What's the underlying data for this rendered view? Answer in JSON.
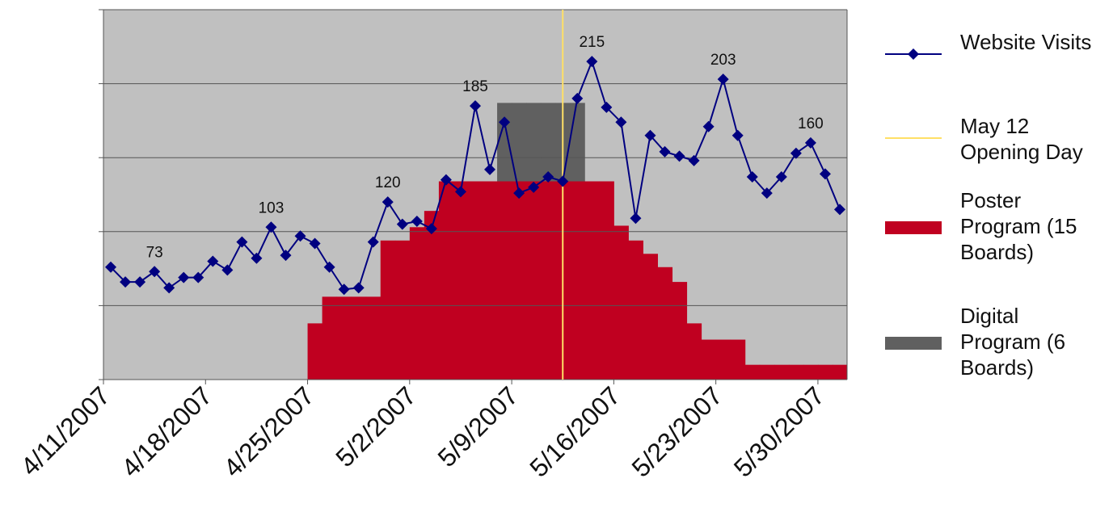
{
  "chart_data": {
    "type": "line",
    "categories": [
      "4/11/2007",
      null,
      null,
      null,
      null,
      null,
      null,
      "4/18/2007",
      null,
      null,
      null,
      null,
      null,
      null,
      "4/25/2007",
      null,
      null,
      null,
      null,
      null,
      null,
      "5/2/2007",
      null,
      null,
      null,
      null,
      null,
      null,
      "5/9/2007",
      null,
      null,
      null,
      null,
      null,
      null,
      "5/16/2007",
      null,
      null,
      null,
      null,
      null,
      null,
      "5/23/2007",
      null,
      null,
      null,
      null,
      null,
      null,
      "5/30/2007",
      null
    ],
    "ylim": [
      0,
      250
    ],
    "yticks": [
      0,
      50,
      100,
      150,
      200,
      250
    ],
    "grid": true,
    "series": [
      {
        "name": "Website Visits",
        "type": "line",
        "color": "#000080",
        "values": [
          76,
          66,
          66,
          73,
          62,
          69,
          69,
          80,
          74,
          93,
          82,
          103,
          84,
          97,
          92,
          76,
          61,
          62,
          93,
          120,
          105,
          107,
          102,
          135,
          127,
          185,
          142,
          174,
          126,
          130,
          137,
          134,
          190,
          215,
          184,
          174,
          109,
          165,
          154,
          151,
          148,
          171,
          203,
          165,
          137,
          126,
          137,
          153,
          160,
          139,
          115
        ],
        "value_labels": [
          null,
          null,
          null,
          73,
          null,
          null,
          null,
          null,
          null,
          null,
          null,
          103,
          null,
          null,
          null,
          null,
          null,
          null,
          null,
          120,
          null,
          null,
          null,
          null,
          null,
          185,
          null,
          null,
          null,
          null,
          null,
          null,
          null,
          215,
          null,
          null,
          null,
          null,
          null,
          null,
          null,
          null,
          203,
          null,
          null,
          null,
          null,
          null,
          160,
          null,
          null
        ]
      },
      {
        "name": "Poster Program (15 Boards)",
        "type": "step",
        "color": "#c00020",
        "values": [
          0,
          0,
          0,
          0,
          0,
          0,
          0,
          0,
          0,
          0,
          0,
          0,
          0,
          0,
          38,
          56,
          56,
          56,
          56,
          94,
          94,
          103,
          114,
          134,
          134,
          134,
          134,
          134,
          134,
          134,
          134,
          134,
          134,
          134,
          134,
          104,
          94,
          85,
          76,
          66,
          38,
          27,
          27,
          27,
          10,
          10,
          10,
          10,
          10,
          10,
          10
        ]
      },
      {
        "name": "Digital Program (6 Boards)",
        "type": "step",
        "color": "#606060",
        "values": [
          0,
          0,
          0,
          0,
          0,
          0,
          0,
          0,
          0,
          0,
          0,
          0,
          0,
          0,
          0,
          0,
          0,
          0,
          0,
          0,
          0,
          0,
          0,
          0,
          0,
          0,
          0,
          53,
          53,
          53,
          53,
          53,
          53,
          0,
          0,
          0,
          0,
          0,
          0,
          0,
          0,
          0,
          0,
          0,
          0,
          0,
          0,
          0,
          0,
          0,
          0
        ]
      }
    ],
    "reference_line": {
      "name": "May 12 Opening Day",
      "category_index": 31,
      "color": "#ffe066"
    }
  }
}
